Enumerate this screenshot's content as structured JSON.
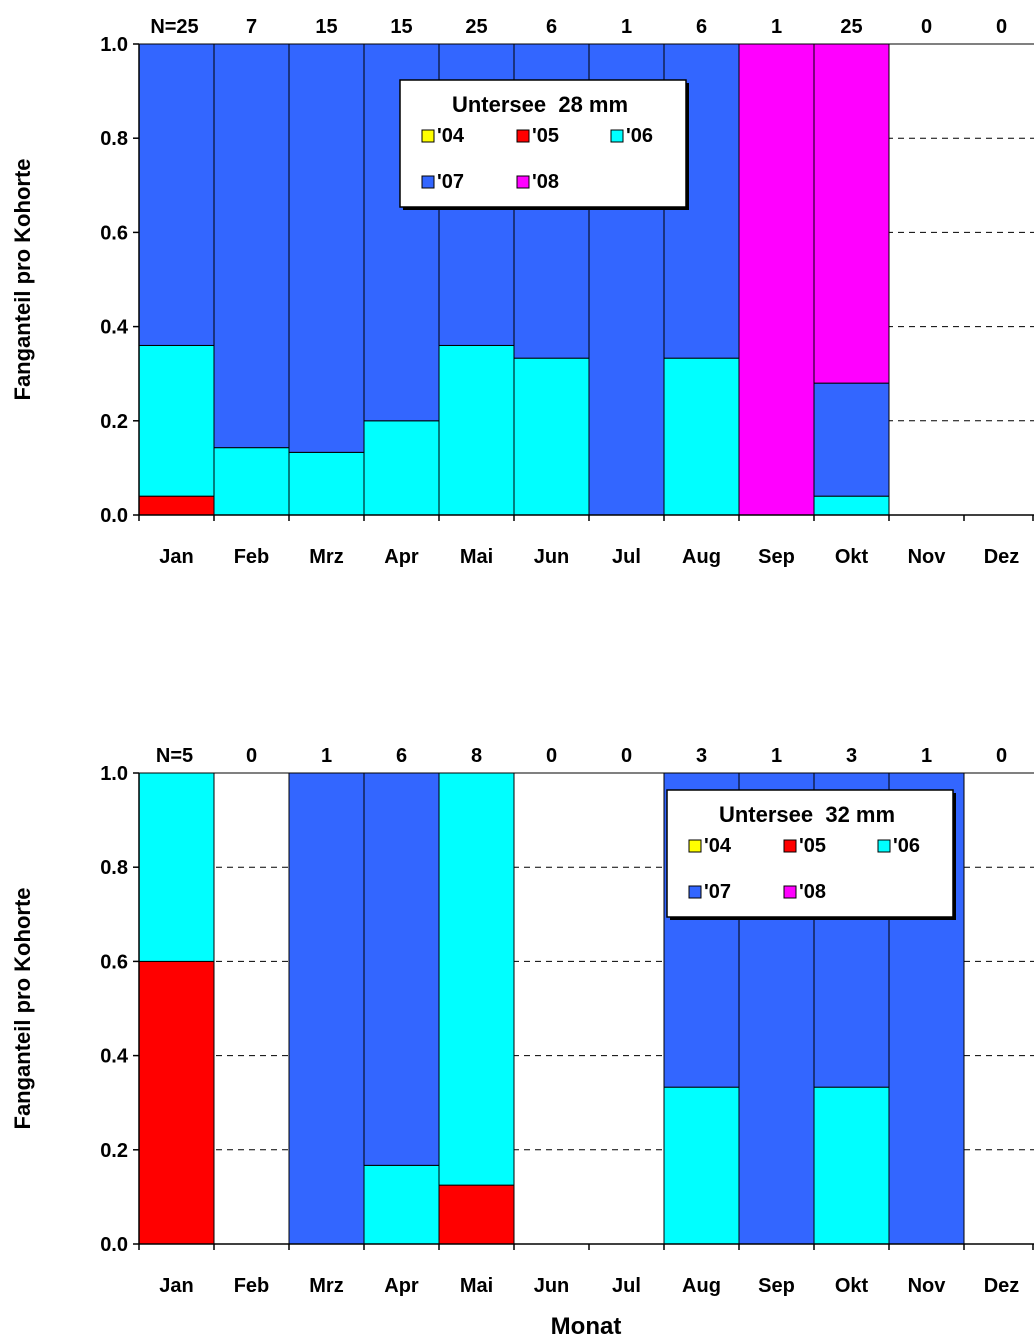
{
  "colors": {
    "'04": "#ffff00",
    "'05": "#ff0000",
    "'06": "#00ffff",
    "'07": "#3366ff",
    "'08": "#ff00ff"
  },
  "chart_data": [
    {
      "type": "bar",
      "stacked": true,
      "categories": [
        "Jan",
        "Feb",
        "Mrz",
        "Apr",
        "Mai",
        "Jun",
        "Jul",
        "Aug",
        "Sep",
        "Okt",
        "Nov",
        "Dez"
      ],
      "counts": [
        "N=25",
        "7",
        "15",
        "15",
        "25",
        "6",
        "1",
        "6",
        "1",
        "25",
        "0",
        "0"
      ],
      "legend_title": "Untersee  28 mm",
      "legend_position": "top-center",
      "ylabel": "Fanganteil pro Kohorte",
      "xlabel": "",
      "ylim": [
        0,
        1
      ],
      "yticks": [
        "0.0",
        "0.2",
        "0.4",
        "0.6",
        "0.8",
        "1.0"
      ],
      "grid": "dashed horizontal",
      "series": [
        {
          "name": "'04",
          "values": [
            0,
            0,
            0,
            0,
            0,
            0,
            0,
            0,
            0,
            0,
            0,
            0
          ]
        },
        {
          "name": "'05",
          "values": [
            0.04,
            0,
            0,
            0,
            0,
            0,
            0,
            0,
            0,
            0,
            0,
            0
          ]
        },
        {
          "name": "'06",
          "values": [
            0.32,
            0.143,
            0.133,
            0.2,
            0.36,
            0.333,
            0,
            0.333,
            0,
            0.04,
            0,
            0
          ]
        },
        {
          "name": "'07",
          "values": [
            0.64,
            0.857,
            0.867,
            0.8,
            0.64,
            0.667,
            1,
            0.667,
            0,
            0.24,
            0,
            0
          ]
        },
        {
          "name": "'08",
          "values": [
            0,
            0,
            0,
            0,
            0,
            0,
            0,
            0,
            1,
            0.72,
            0,
            0
          ]
        }
      ]
    },
    {
      "type": "bar",
      "stacked": true,
      "categories": [
        "Jan",
        "Feb",
        "Mrz",
        "Apr",
        "Mai",
        "Jun",
        "Jul",
        "Aug",
        "Sep",
        "Okt",
        "Nov",
        "Dez"
      ],
      "counts": [
        "N=5",
        "0",
        "1",
        "6",
        "8",
        "0",
        "0",
        "3",
        "1",
        "3",
        "1",
        "0"
      ],
      "legend_title": "Untersee  32 mm",
      "legend_position": "top-right",
      "ylabel": "Fanganteil pro Kohorte",
      "xlabel": "Monat",
      "ylim": [
        0,
        1
      ],
      "yticks": [
        "0.0",
        "0.2",
        "0.4",
        "0.6",
        "0.8",
        "1.0"
      ],
      "grid": "dashed horizontal",
      "series": [
        {
          "name": "'04",
          "values": [
            0,
            0,
            0,
            0,
            0,
            0,
            0,
            0,
            0,
            0,
            0,
            0
          ]
        },
        {
          "name": "'05",
          "values": [
            0.6,
            0,
            0,
            0,
            0.125,
            0,
            0,
            0,
            0,
            0,
            0,
            0
          ]
        },
        {
          "name": "'06",
          "values": [
            0.4,
            0,
            0,
            0.167,
            0.875,
            0,
            0,
            0.333,
            0,
            0.333,
            0,
            0
          ]
        },
        {
          "name": "'07",
          "values": [
            0,
            0,
            1,
            0.833,
            0,
            0,
            0,
            0.667,
            1,
            0.667,
            1,
            0
          ]
        },
        {
          "name": "'08",
          "values": [
            0,
            0,
            0,
            0,
            0,
            0,
            0,
            0,
            0,
            0,
            0,
            0
          ]
        }
      ]
    }
  ]
}
